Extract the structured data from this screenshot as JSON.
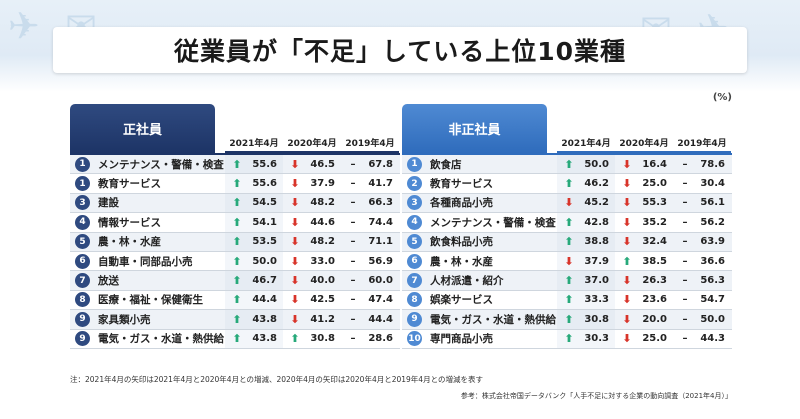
{
  "title": "従業員が「不足」している上位10業種",
  "unit": "(%)",
  "year_headers": [
    "2021年4月",
    "2020年4月",
    "2019年4月"
  ],
  "left": {
    "header": "正社員",
    "rows": [
      {
        "rank": "1",
        "industry": "メンテナンス・警備・検査",
        "v2021": {
          "dir": "up",
          "value": "55.6"
        },
        "v2020": {
          "dir": "down",
          "value": "46.5"
        },
        "v2019": {
          "dir": "flat",
          "value": "67.8"
        }
      },
      {
        "rank": "1",
        "industry": "教育サービス",
        "v2021": {
          "dir": "up",
          "value": "55.6"
        },
        "v2020": {
          "dir": "down",
          "value": "37.9"
        },
        "v2019": {
          "dir": "flat",
          "value": "41.7"
        }
      },
      {
        "rank": "3",
        "industry": "建設",
        "v2021": {
          "dir": "up",
          "value": "54.5"
        },
        "v2020": {
          "dir": "down",
          "value": "48.2"
        },
        "v2019": {
          "dir": "flat",
          "value": "66.3"
        }
      },
      {
        "rank": "4",
        "industry": "情報サービス",
        "v2021": {
          "dir": "up",
          "value": "54.1"
        },
        "v2020": {
          "dir": "down",
          "value": "44.6"
        },
        "v2019": {
          "dir": "flat",
          "value": "74.4"
        }
      },
      {
        "rank": "5",
        "industry": "農・林・水産",
        "v2021": {
          "dir": "up",
          "value": "53.5"
        },
        "v2020": {
          "dir": "down",
          "value": "48.2"
        },
        "v2019": {
          "dir": "flat",
          "value": "71.1"
        }
      },
      {
        "rank": "6",
        "industry": "自動車・同部品小売",
        "v2021": {
          "dir": "up",
          "value": "50.0"
        },
        "v2020": {
          "dir": "down",
          "value": "33.0"
        },
        "v2019": {
          "dir": "flat",
          "value": "56.9"
        }
      },
      {
        "rank": "7",
        "industry": "放送",
        "v2021": {
          "dir": "up",
          "value": "46.7"
        },
        "v2020": {
          "dir": "down",
          "value": "40.0"
        },
        "v2019": {
          "dir": "flat",
          "value": "60.0"
        }
      },
      {
        "rank": "8",
        "industry": "医療・福祉・保健衛生",
        "v2021": {
          "dir": "up",
          "value": "44.4"
        },
        "v2020": {
          "dir": "down",
          "value": "42.5"
        },
        "v2019": {
          "dir": "flat",
          "value": "47.4"
        }
      },
      {
        "rank": "9",
        "industry": "家具類小売",
        "v2021": {
          "dir": "up",
          "value": "43.8"
        },
        "v2020": {
          "dir": "down",
          "value": "41.2"
        },
        "v2019": {
          "dir": "flat",
          "value": "44.4"
        }
      },
      {
        "rank": "9",
        "industry": "電気・ガス・水道・熱供給",
        "v2021": {
          "dir": "up",
          "value": "43.8"
        },
        "v2020": {
          "dir": "up",
          "value": "30.8"
        },
        "v2019": {
          "dir": "flat",
          "value": "28.6"
        }
      }
    ]
  },
  "right": {
    "header": "非正社員",
    "rows": [
      {
        "rank": "1",
        "industry": "飲食店",
        "v2021": {
          "dir": "up",
          "value": "50.0"
        },
        "v2020": {
          "dir": "down",
          "value": "16.4"
        },
        "v2019": {
          "dir": "flat",
          "value": "78.6"
        }
      },
      {
        "rank": "2",
        "industry": "教育サービス",
        "v2021": {
          "dir": "up",
          "value": "46.2"
        },
        "v2020": {
          "dir": "down",
          "value": "25.0"
        },
        "v2019": {
          "dir": "flat",
          "value": "30.4"
        }
      },
      {
        "rank": "3",
        "industry": "各種商品小売",
        "v2021": {
          "dir": "down",
          "value": "45.2"
        },
        "v2020": {
          "dir": "down",
          "value": "55.3"
        },
        "v2019": {
          "dir": "flat",
          "value": "56.1"
        }
      },
      {
        "rank": "4",
        "industry": "メンテナンス・警備・検査",
        "v2021": {
          "dir": "up",
          "value": "42.8"
        },
        "v2020": {
          "dir": "down",
          "value": "35.2"
        },
        "v2019": {
          "dir": "flat",
          "value": "56.2"
        }
      },
      {
        "rank": "5",
        "industry": "飲食料品小売",
        "v2021": {
          "dir": "up",
          "value": "38.8"
        },
        "v2020": {
          "dir": "down",
          "value": "32.4"
        },
        "v2019": {
          "dir": "flat",
          "value": "63.9"
        }
      },
      {
        "rank": "6",
        "industry": "農・林・水産",
        "v2021": {
          "dir": "down",
          "value": "37.9"
        },
        "v2020": {
          "dir": "up",
          "value": "38.5"
        },
        "v2019": {
          "dir": "flat",
          "value": "36.6"
        }
      },
      {
        "rank": "7",
        "industry": "人材派遣・紹介",
        "v2021": {
          "dir": "up",
          "value": "37.0"
        },
        "v2020": {
          "dir": "down",
          "value": "26.3"
        },
        "v2019": {
          "dir": "flat",
          "value": "56.3"
        }
      },
      {
        "rank": "8",
        "industry": "娯楽サービス",
        "v2021": {
          "dir": "up",
          "value": "33.3"
        },
        "v2020": {
          "dir": "down",
          "value": "23.6"
        },
        "v2019": {
          "dir": "flat",
          "value": "54.7"
        }
      },
      {
        "rank": "9",
        "industry": "電気・ガス・水道・熱供給",
        "v2021": {
          "dir": "up",
          "value": "30.8"
        },
        "v2020": {
          "dir": "down",
          "value": "20.0"
        },
        "v2019": {
          "dir": "flat",
          "value": "50.0"
        }
      },
      {
        "rank": "10",
        "industry": "専門商品小売",
        "v2021": {
          "dir": "up",
          "value": "30.3"
        },
        "v2020": {
          "dir": "down",
          "value": "25.0"
        },
        "v2019": {
          "dir": "flat",
          "value": "44.3"
        }
      }
    ]
  },
  "note": "注：2021年4月の矢印は2021年4月と2020年4月との増減、2020年4月の矢印は2020年4月と2019年4月との増減を表す",
  "source": "参考：株式会社帝国データバンク「人手不足に対する企業の動向調査（2021年4月）」",
  "colors": {
    "up": "#27a97a",
    "down": "#d8342a",
    "left_header": "#1d3466",
    "right_header": "#2f6cbc"
  }
}
